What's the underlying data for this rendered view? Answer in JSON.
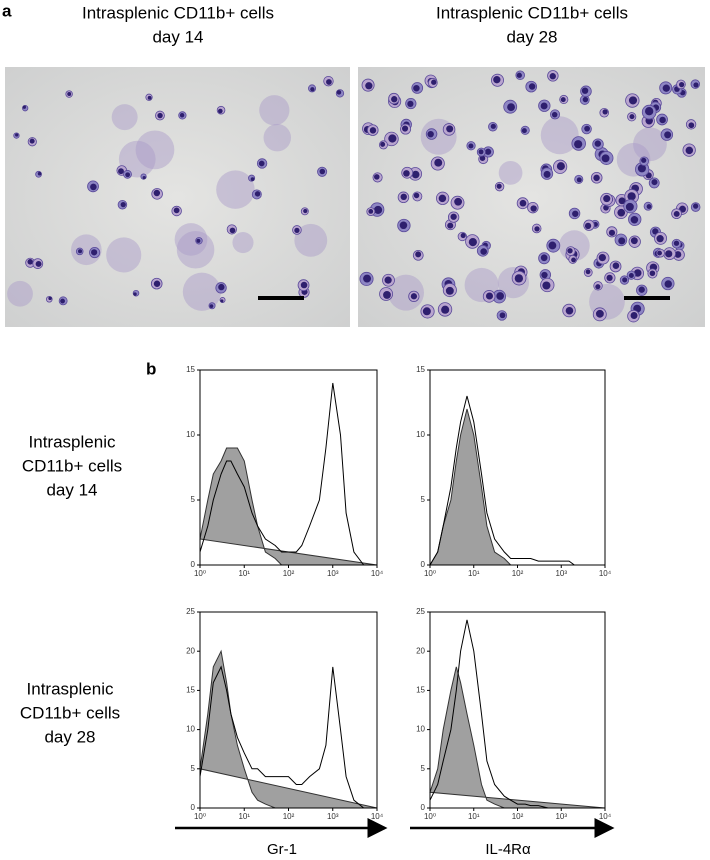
{
  "panel_a": {
    "label": "a",
    "images": [
      {
        "title": [
          "Intrasplenic CD11b+ cells",
          "day 14"
        ]
      },
      {
        "title": [
          "Intrasplenic CD11b+ cells",
          "day 28"
        ]
      }
    ]
  },
  "panel_b": {
    "label": "b",
    "rows": [
      {
        "label": [
          "Intrasplenic",
          "CD11b+ cells",
          "day 14"
        ]
      },
      {
        "label": [
          "Intrasplenic",
          "CD11b+ cells",
          "day 28"
        ]
      }
    ],
    "x_axis_labels": [
      "Gr-1",
      "IL-4Rα"
    ],
    "charts": [
      {
        "type": "line",
        "xlog": true,
        "xlim": [
          1,
          10000
        ],
        "xticks": [
          {
            "value": 1,
            "label": "10⁰"
          },
          {
            "value": 10,
            "label": "10¹"
          },
          {
            "value": 100,
            "label": "10²"
          },
          {
            "value": 1000,
            "label": "10³"
          },
          {
            "value": 10000,
            "label": "10⁴"
          }
        ],
        "ylim": [
          0,
          15
        ],
        "yticks": [
          0,
          5,
          10,
          15
        ],
        "x": [
          1,
          1.5,
          2,
          3,
          4,
          5,
          7,
          10,
          15,
          20,
          30,
          50,
          70,
          100,
          150,
          200,
          300,
          500,
          700,
          1000,
          1500,
          2000,
          3000,
          5000,
          7000,
          10000
        ],
        "series": [
          {
            "color": "#a0a0a0",
            "filled": true,
            "values": [
              2,
              5,
              7,
              8,
              9,
              9,
              9,
              8,
              5,
              3,
              1,
              0.5,
              0,
              0,
              0,
              0,
              0,
              0,
              0,
              0,
              0,
              0,
              0,
              0,
              0,
              0
            ]
          },
          {
            "color": "#000000",
            "filled": false,
            "values": [
              1,
              3,
              5,
              7,
              8,
              8,
              7,
              6,
              4,
              3,
              2,
              1.5,
              1,
              1,
              1,
              1.5,
              3,
              5,
              9,
              14,
              10,
              4,
              1,
              0,
              0,
              0
            ]
          }
        ]
      },
      {
        "type": "line",
        "xlog": true,
        "xlim": [
          1,
          10000
        ],
        "xticks": [
          {
            "value": 1,
            "label": "10⁰"
          },
          {
            "value": 10,
            "label": "10¹"
          },
          {
            "value": 100,
            "label": "10²"
          },
          {
            "value": 1000,
            "label": "10³"
          },
          {
            "value": 10000,
            "label": "10⁴"
          }
        ],
        "ylim": [
          0,
          15
        ],
        "yticks": [
          0,
          5,
          10,
          15
        ],
        "x": [
          1,
          1.5,
          2,
          3,
          4,
          5,
          7,
          10,
          15,
          20,
          30,
          50,
          70,
          100,
          150,
          200,
          300,
          500,
          700,
          1000,
          1500,
          2000,
          3000,
          5000,
          7000,
          10000
        ],
        "series": [
          {
            "color": "#a0a0a0",
            "filled": true,
            "values": [
              0,
              1,
              3,
              5,
              8,
              10,
              12,
              10,
              6,
              3,
              1,
              0.5,
              0,
              0,
              0,
              0,
              0,
              0,
              0,
              0,
              0,
              0,
              0,
              0,
              0,
              0
            ]
          },
          {
            "color": "#000000",
            "filled": false,
            "values": [
              0,
              1,
              3,
              6,
              9,
              11,
              13,
              11,
              7,
              4,
              2,
              1,
              0.5,
              0.5,
              0.5,
              0.5,
              0.3,
              0.3,
              0.3,
              0.3,
              0.3,
              0,
              0,
              0,
              0,
              0
            ]
          }
        ]
      },
      {
        "type": "line",
        "xlog": true,
        "xlim": [
          1,
          10000
        ],
        "xticks": [
          {
            "value": 1,
            "label": "10⁰"
          },
          {
            "value": 10,
            "label": "10¹"
          },
          {
            "value": 100,
            "label": "10²"
          },
          {
            "value": 1000,
            "label": "10³"
          },
          {
            "value": 10000,
            "label": "10⁴"
          }
        ],
        "ylim": [
          0,
          25
        ],
        "yticks": [
          0,
          5,
          10,
          15,
          20,
          25
        ],
        "x": [
          1,
          1.5,
          2,
          3,
          4,
          5,
          7,
          10,
          15,
          20,
          30,
          50,
          70,
          100,
          150,
          200,
          300,
          500,
          700,
          1000,
          1500,
          2000,
          3000,
          5000,
          7000,
          10000
        ],
        "series": [
          {
            "color": "#a0a0a0",
            "filled": true,
            "values": [
              5,
              12,
              18,
              20,
              16,
              12,
              8,
              5,
              2,
              1,
              0.5,
              0,
              0,
              0,
              0,
              0,
              0,
              0,
              0,
              0,
              0,
              0,
              0,
              0,
              0,
              0
            ]
          },
          {
            "color": "#000000",
            "filled": false,
            "values": [
              4,
              10,
              16,
              18,
              15,
              12,
              9,
              7,
              5,
              5,
              4,
              4,
              4,
              4,
              3,
              3,
              4,
              5,
              8,
              18,
              10,
              4,
              1,
              0,
              0,
              0
            ]
          }
        ]
      },
      {
        "type": "line",
        "xlog": true,
        "xlim": [
          1,
          10000
        ],
        "xticks": [
          {
            "value": 1,
            "label": "10⁰"
          },
          {
            "value": 10,
            "label": "10¹"
          },
          {
            "value": 100,
            "label": "10²"
          },
          {
            "value": 1000,
            "label": "10³"
          },
          {
            "value": 10000,
            "label": "10⁴"
          }
        ],
        "ylim": [
          0,
          25
        ],
        "yticks": [
          0,
          5,
          10,
          15,
          20,
          25
        ],
        "x": [
          1,
          1.5,
          2,
          3,
          4,
          5,
          7,
          10,
          15,
          20,
          30,
          50,
          70,
          100,
          150,
          200,
          300,
          500,
          700,
          1000,
          1500,
          2000,
          3000,
          5000,
          7000,
          10000
        ],
        "series": [
          {
            "color": "#a0a0a0",
            "filled": true,
            "values": [
              2,
              5,
              10,
              15,
              18,
              16,
              12,
              8,
              3,
              1,
              0.5,
              0,
              0,
              0,
              0,
              0,
              0,
              0,
              0,
              0,
              0,
              0,
              0,
              0,
              0,
              0
            ]
          },
          {
            "color": "#000000",
            "filled": false,
            "values": [
              1,
              3,
              6,
              10,
              15,
              20,
              24,
              20,
              12,
              6,
              3,
              1.5,
              1,
              0.5,
              0.5,
              0.3,
              0.3,
              0,
              0,
              0,
              0,
              0,
              0,
              0,
              0,
              0
            ]
          }
        ]
      }
    ]
  }
}
